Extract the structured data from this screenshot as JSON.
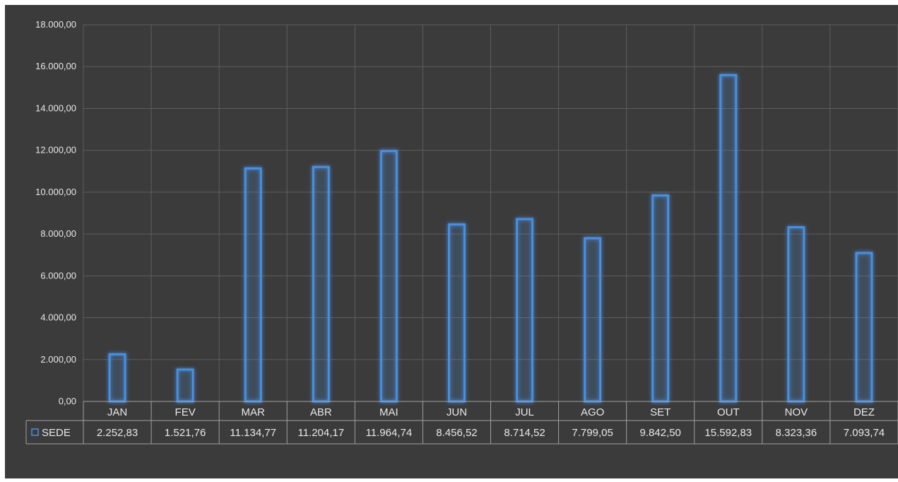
{
  "chart_data": {
    "type": "bar",
    "title": "",
    "xlabel": "",
    "ylabel": "",
    "ylim": [
      0,
      18000
    ],
    "yticks": [
      0,
      2000,
      4000,
      6000,
      8000,
      10000,
      12000,
      14000,
      16000,
      18000
    ],
    "ytick_labels": [
      "0,00",
      "2.000,00",
      "4.000,00",
      "6.000,00",
      "8.000,00",
      "10.000,00",
      "12.000,00",
      "14.000,00",
      "16.000,00",
      "18.000,00"
    ],
    "categories": [
      "JAN",
      "FEV",
      "MAR",
      "ABR",
      "MAI",
      "JUN",
      "JUL",
      "AGO",
      "SET",
      "OUT",
      "NOV",
      "DEZ"
    ],
    "grid": true,
    "legend_position": "data-table-left",
    "series": [
      {
        "name": "SEDE",
        "color": "#4a8fe0",
        "values": [
          2252.83,
          1521.76,
          11134.77,
          11204.17,
          11964.74,
          8456.52,
          8714.52,
          7799.05,
          9842.5,
          15592.83,
          8323.36,
          7093.74
        ],
        "value_labels": [
          "2.252,83",
          "1.521,76",
          "11.134,77",
          "11.204,17",
          "11.964,74",
          "8.456,52",
          "8.714,52",
          "7.799,05",
          "9.842,50",
          "15.592,83",
          "8.323,36",
          "7.093,74"
        ]
      }
    ]
  }
}
